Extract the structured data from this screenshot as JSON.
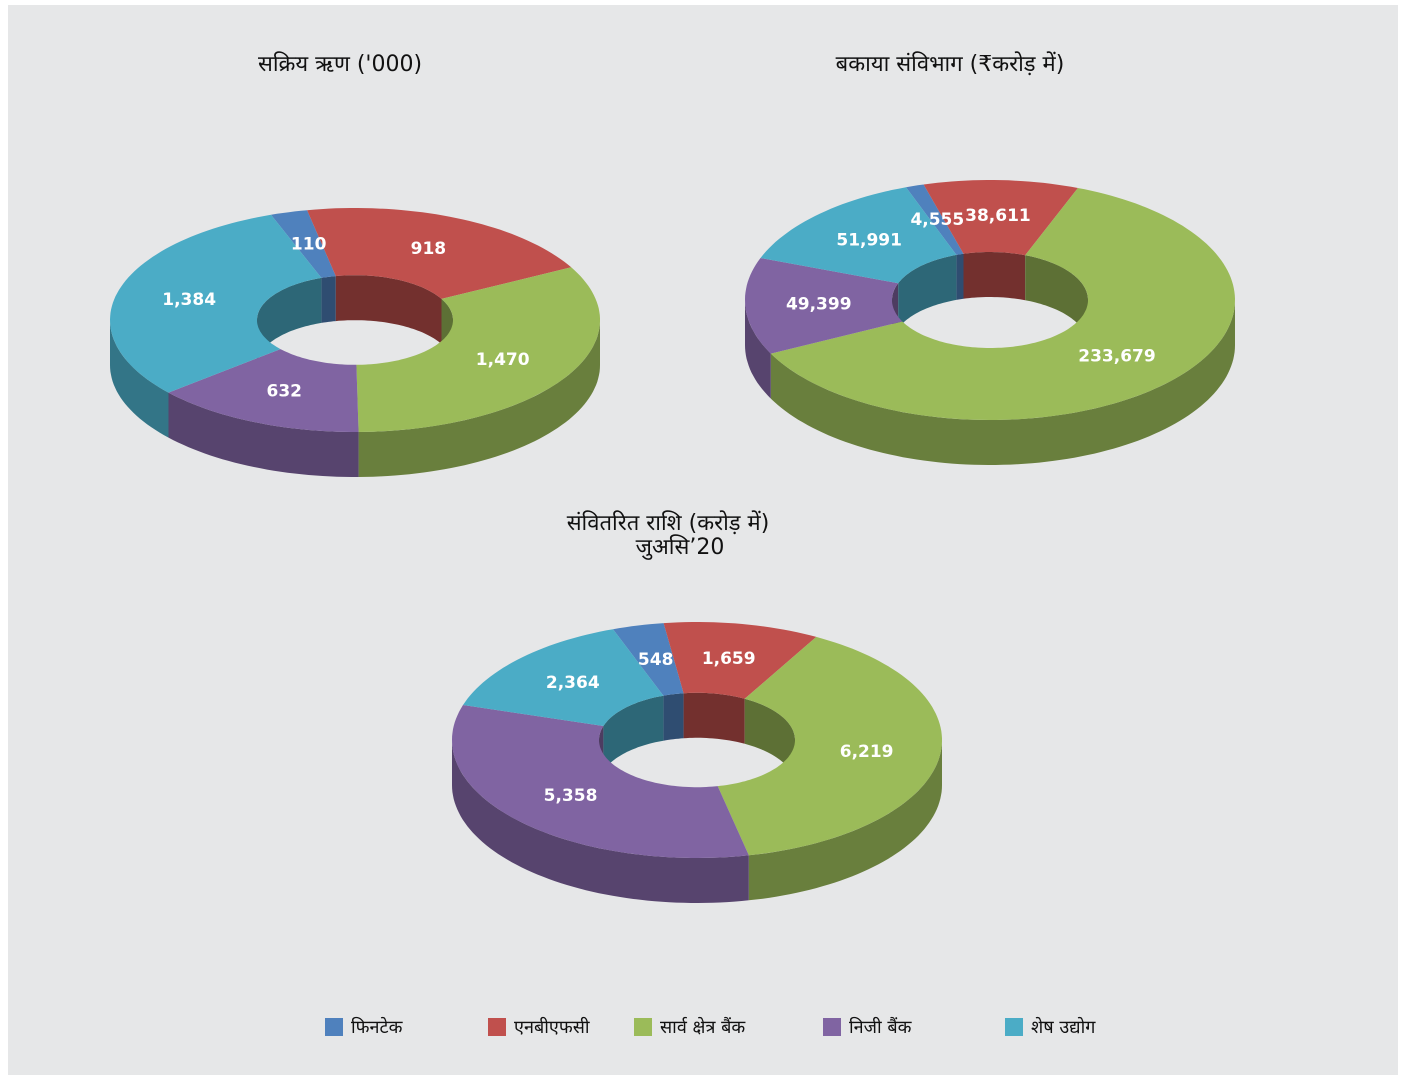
{
  "chart_data": [
    {
      "type": "pie",
      "title": "सक्रिय ऋण ('000)",
      "values": [
        110,
        918,
        1470,
        632,
        1384
      ],
      "value_labels": [
        "110",
        "918",
        "1,470",
        "632",
        "1,384"
      ]
    },
    {
      "type": "pie",
      "title": "बकाया संविभाग (₹करोड़ में)",
      "values": [
        4555,
        38611,
        233679,
        49399,
        51991
      ],
      "value_labels": [
        "4,555",
        "38,611",
        "233,679",
        "49,399",
        "51,991"
      ]
    },
    {
      "type": "pie",
      "title": "संवितरित राशि (करोड़ में)",
      "subtitle": "जुअसि’20",
      "values": [
        548,
        1659,
        6219,
        5358,
        2364
      ],
      "value_labels": [
        "548",
        "1,659",
        "6,219",
        "5,358",
        "2,364"
      ]
    }
  ],
  "legend": {
    "categories": [
      "फिनटेक",
      "एनबीएफसी",
      "सार्व क्षेत्र बैंक",
      "निजी बैंक",
      "शेष उद्योग"
    ],
    "colors": [
      "#4f81bd",
      "#c0504d",
      "#9bbb59",
      "#8064a2",
      "#4bacc6"
    ]
  }
}
